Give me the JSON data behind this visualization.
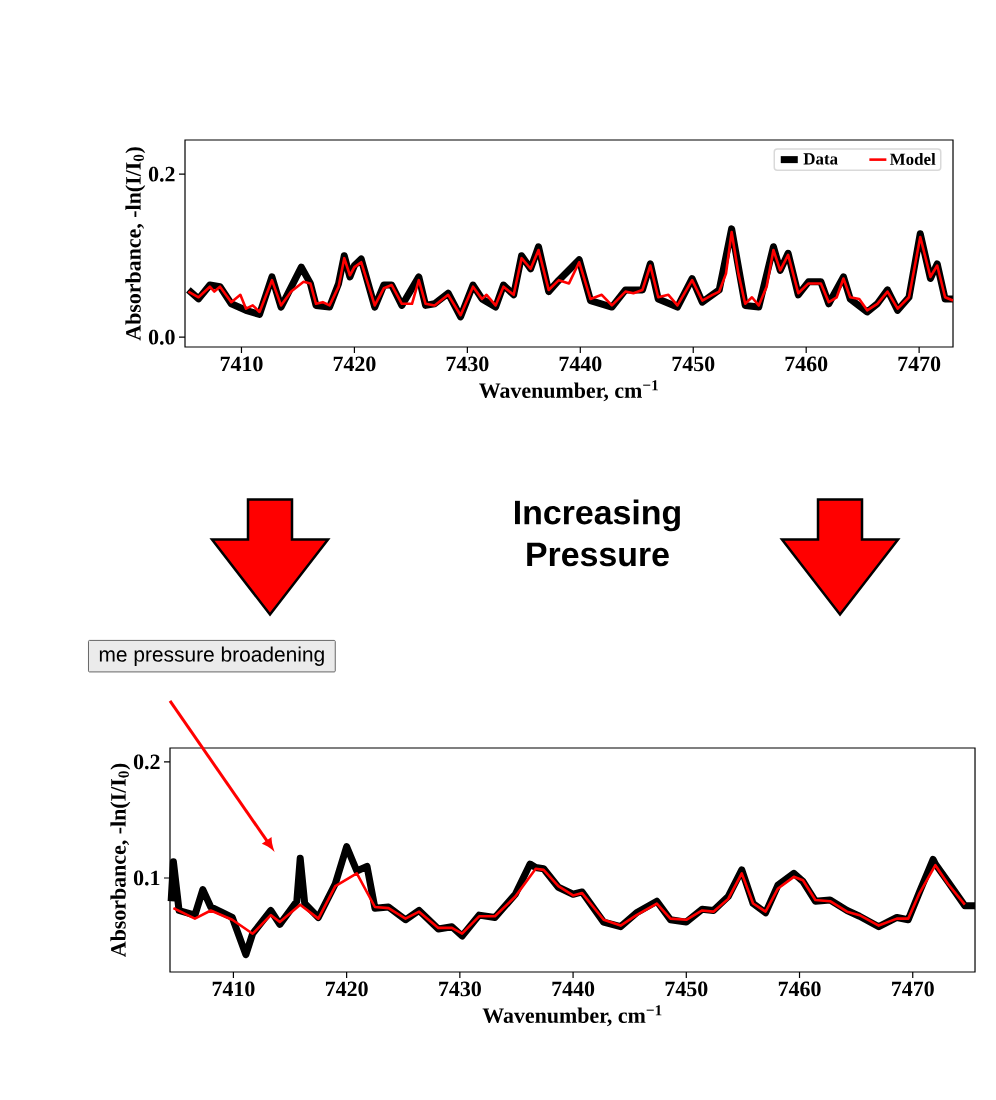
{
  "chart_data": [
    {
      "type": "line",
      "xlabel": "Wavenumber,  cm$^{−1}$",
      "ylabel": "Absorbance,  -ln(I/I$_{0}$)",
      "xlim": [
        7405,
        7473
      ],
      "ylim": [
        -0.012,
        0.242
      ],
      "xticks": [
        7410,
        7420,
        7430,
        7440,
        7450,
        7460,
        7470
      ],
      "yticks": [
        {
          "value": 0,
          "label": "0.0"
        },
        {
          "value": 0.2,
          "label": "0.2"
        }
      ],
      "legend": "top right",
      "series": [
        {
          "name": "Data",
          "color": "#000000",
          "x": [
            7405.3,
            7406.2,
            7407.2,
            7408.1,
            7409.1,
            7410.4,
            7411.6,
            7412.7,
            7413.5,
            7415.3,
            7416.1,
            7416.6,
            7417.8,
            7418.6,
            7419.1,
            7419.6,
            7420.0,
            7420.6,
            7421.8,
            7422.6,
            7423.3,
            7424.2,
            7425.7,
            7426.3,
            7427.1,
            7428.3,
            7429.4,
            7430.5,
            7431.3,
            7432.5,
            7433.2,
            7434.1,
            7434.8,
            7435.6,
            7436.3,
            7437.2,
            7438.1,
            7439.9,
            7440.9,
            7442.8,
            7444.0,
            7445.5,
            7446.2,
            7446.9,
            7448.6,
            7449.9,
            7450.8,
            7452.3,
            7453.4,
            7454.6,
            7455.8,
            7457.1,
            7457.7,
            7458.4,
            7459.3,
            7460.2,
            7461.3,
            7462.0,
            7463.3,
            7463.9,
            7465.4,
            7466.3,
            7467.2,
            7468.1,
            7469.1,
            7470.1,
            7471.0,
            7471.6,
            7472.3,
            7473.0
          ],
          "values": [
            0.058,
            0.047,
            0.064,
            0.062,
            0.041,
            0.033,
            0.028,
            0.074,
            0.037,
            0.086,
            0.066,
            0.039,
            0.037,
            0.066,
            0.1,
            0.074,
            0.088,
            0.096,
            0.037,
            0.064,
            0.064,
            0.039,
            0.074,
            0.039,
            0.041,
            0.054,
            0.025,
            0.064,
            0.047,
            0.037,
            0.064,
            0.052,
            0.1,
            0.084,
            0.111,
            0.056,
            0.07,
            0.095,
            0.045,
            0.037,
            0.058,
            0.058,
            0.09,
            0.047,
            0.037,
            0.072,
            0.043,
            0.058,
            0.133,
            0.039,
            0.037,
            0.111,
            0.082,
            0.103,
            0.052,
            0.068,
            0.068,
            0.041,
            0.074,
            0.047,
            0.031,
            0.041,
            0.058,
            0.033,
            0.049,
            0.127,
            0.072,
            0.09,
            0.047,
            0.047
          ]
        },
        {
          "name": "Model",
          "color": "#ff0000",
          "x": [
            7405.3,
            7406.2,
            7407.2,
            7407.6,
            7408.1,
            7409.1,
            7409.9,
            7410.4,
            7411.0,
            7411.6,
            7412.7,
            7413.5,
            7414.4,
            7415.5,
            7416.1,
            7416.6,
            7417.2,
            7417.8,
            7418.6,
            7419.1,
            7419.6,
            7420.0,
            7420.6,
            7421.1,
            7421.8,
            7422.6,
            7423.3,
            7424.2,
            7425.1,
            7425.7,
            7426.3,
            7427.1,
            7428.3,
            7429.4,
            7430.5,
            7431.3,
            7431.7,
            7432.5,
            7433.2,
            7434.1,
            7434.8,
            7435.6,
            7436.3,
            7437.2,
            7438.1,
            7439.0,
            7439.9,
            7440.9,
            7441.9,
            7442.8,
            7444.0,
            7444.7,
            7445.5,
            7446.2,
            7446.9,
            7447.8,
            7448.6,
            7449.9,
            7450.8,
            7451.7,
            7452.3,
            7452.9,
            7453.4,
            7454.0,
            7454.6,
            7455.2,
            7455.8,
            7456.5,
            7457.1,
            7457.7,
            7458.4,
            7459.3,
            7460.2,
            7461.3,
            7462.0,
            7462.7,
            7463.3,
            7463.9,
            7464.7,
            7465.4,
            7466.3,
            7467.2,
            7468.1,
            7469.1,
            7470.1,
            7471.0,
            7471.6,
            7472.3,
            7473.0
          ],
          "values": [
            0.056,
            0.049,
            0.062,
            0.056,
            0.062,
            0.043,
            0.052,
            0.035,
            0.039,
            0.031,
            0.07,
            0.039,
            0.056,
            0.068,
            0.066,
            0.041,
            0.043,
            0.039,
            0.062,
            0.097,
            0.076,
            0.086,
            0.092,
            0.07,
            0.039,
            0.06,
            0.064,
            0.041,
            0.041,
            0.07,
            0.041,
            0.039,
            0.052,
            0.027,
            0.062,
            0.047,
            0.052,
            0.039,
            0.062,
            0.052,
            0.097,
            0.084,
            0.107,
            0.058,
            0.07,
            0.066,
            0.092,
            0.047,
            0.052,
            0.039,
            0.056,
            0.054,
            0.058,
            0.088,
            0.049,
            0.052,
            0.039,
            0.07,
            0.045,
            0.052,
            0.056,
            0.078,
            0.129,
            0.078,
            0.041,
            0.049,
            0.039,
            0.062,
            0.107,
            0.082,
            0.101,
            0.054,
            0.066,
            0.066,
            0.043,
            0.049,
            0.072,
            0.049,
            0.047,
            0.033,
            0.041,
            0.056,
            0.035,
            0.049,
            0.123,
            0.074,
            0.088,
            0.049,
            0.045
          ]
        }
      ]
    },
    {
      "type": "line",
      "xlabel": "Wavenumber,  cm$^{−1}$",
      "ylabel": "Absorbance,  -ln(I/I$_{0}$)",
      "xlim": [
        7404.4,
        7475.5
      ],
      "ylim": [
        0.019,
        0.212
      ],
      "xticks": [
        7410,
        7420,
        7430,
        7440,
        7450,
        7460,
        7470
      ],
      "yticks": [
        {
          "value": 0.1,
          "label": "0.1"
        },
        {
          "value": 0.2,
          "label": "0.2"
        }
      ],
      "annotations": [
        "Increasing Pressure",
        {
          "text": "me pressure broadening"
        }
      ],
      "series": [
        {
          "color": "#000000",
          "x": [
            7404.5,
            7404.7,
            7405.2,
            7406.6,
            7407.3,
            7408.0,
            7409.9,
            7411.1,
            7411.7,
            7413.3,
            7414.1,
            7415.6,
            7415.9,
            7416.3,
            7417.5,
            7419.0,
            7420.0,
            7420.9,
            7421.8,
            7422.5,
            7423.7,
            7425.2,
            7426.4,
            7428.1,
            7429.3,
            7430.2,
            7431.7,
            7433.1,
            7434.9,
            7436.2,
            7436.7,
            7437.4,
            7438.7,
            7440.0,
            7440.8,
            7442.7,
            7444.2,
            7445.6,
            7447.4,
            7448.6,
            7450.0,
            7451.4,
            7452.4,
            7453.7,
            7454.9,
            7455.9,
            7457.0,
            7458.1,
            7459.5,
            7460.3,
            7461.4,
            7462.7,
            7464.2,
            7465.3,
            7467.0,
            7468.6,
            7469.6,
            7470.6,
            7471.8,
            7472.0,
            7473.1,
            7474.6,
            7475.5
          ],
          "values": [
            0.08,
            0.114,
            0.072,
            0.068,
            0.09,
            0.075,
            0.066,
            0.034,
            0.052,
            0.072,
            0.06,
            0.08,
            0.117,
            0.078,
            0.066,
            0.095,
            0.127,
            0.106,
            0.11,
            0.074,
            0.075,
            0.064,
            0.072,
            0.056,
            0.058,
            0.05,
            0.068,
            0.066,
            0.086,
            0.112,
            0.109,
            0.108,
            0.092,
            0.086,
            0.088,
            0.062,
            0.058,
            0.07,
            0.08,
            0.064,
            0.062,
            0.073,
            0.072,
            0.084,
            0.107,
            0.078,
            0.07,
            0.094,
            0.104,
            0.097,
            0.08,
            0.081,
            0.072,
            0.067,
            0.058,
            0.066,
            0.064,
            0.088,
            0.116,
            0.112,
            0.097,
            0.076,
            0.076
          ]
        },
        {
          "color": "#ff0000",
          "x": [
            7404.7,
            7406.6,
            7408.0,
            7409.9,
            7411.7,
            7413.3,
            7414.1,
            7415.9,
            7417.5,
            7419.0,
            7420.9,
            7422.5,
            7423.7,
            7425.2,
            7426.4,
            7428.1,
            7429.3,
            7430.2,
            7431.7,
            7433.1,
            7434.9,
            7436.7,
            7437.4,
            7438.7,
            7440.0,
            7440.8,
            7442.7,
            7444.2,
            7445.6,
            7447.4,
            7448.6,
            7450.0,
            7451.4,
            7452.4,
            7453.7,
            7454.9,
            7455.9,
            7457.0,
            7458.1,
            7459.5,
            7460.3,
            7461.4,
            7462.7,
            7464.2,
            7465.3,
            7467.0,
            7468.6,
            7469.6,
            7470.6,
            7472.0,
            7473.1,
            7474.6
          ],
          "values": [
            0.074,
            0.065,
            0.072,
            0.064,
            0.052,
            0.068,
            0.062,
            0.077,
            0.065,
            0.093,
            0.104,
            0.075,
            0.074,
            0.065,
            0.071,
            0.057,
            0.057,
            0.052,
            0.067,
            0.067,
            0.084,
            0.108,
            0.107,
            0.093,
            0.085,
            0.087,
            0.064,
            0.059,
            0.068,
            0.078,
            0.065,
            0.064,
            0.072,
            0.071,
            0.082,
            0.104,
            0.078,
            0.071,
            0.091,
            0.101,
            0.098,
            0.081,
            0.08,
            0.071,
            0.068,
            0.059,
            0.065,
            0.065,
            0.087,
            0.111,
            0.095,
            0.077
          ]
        }
      ]
    }
  ]
}
